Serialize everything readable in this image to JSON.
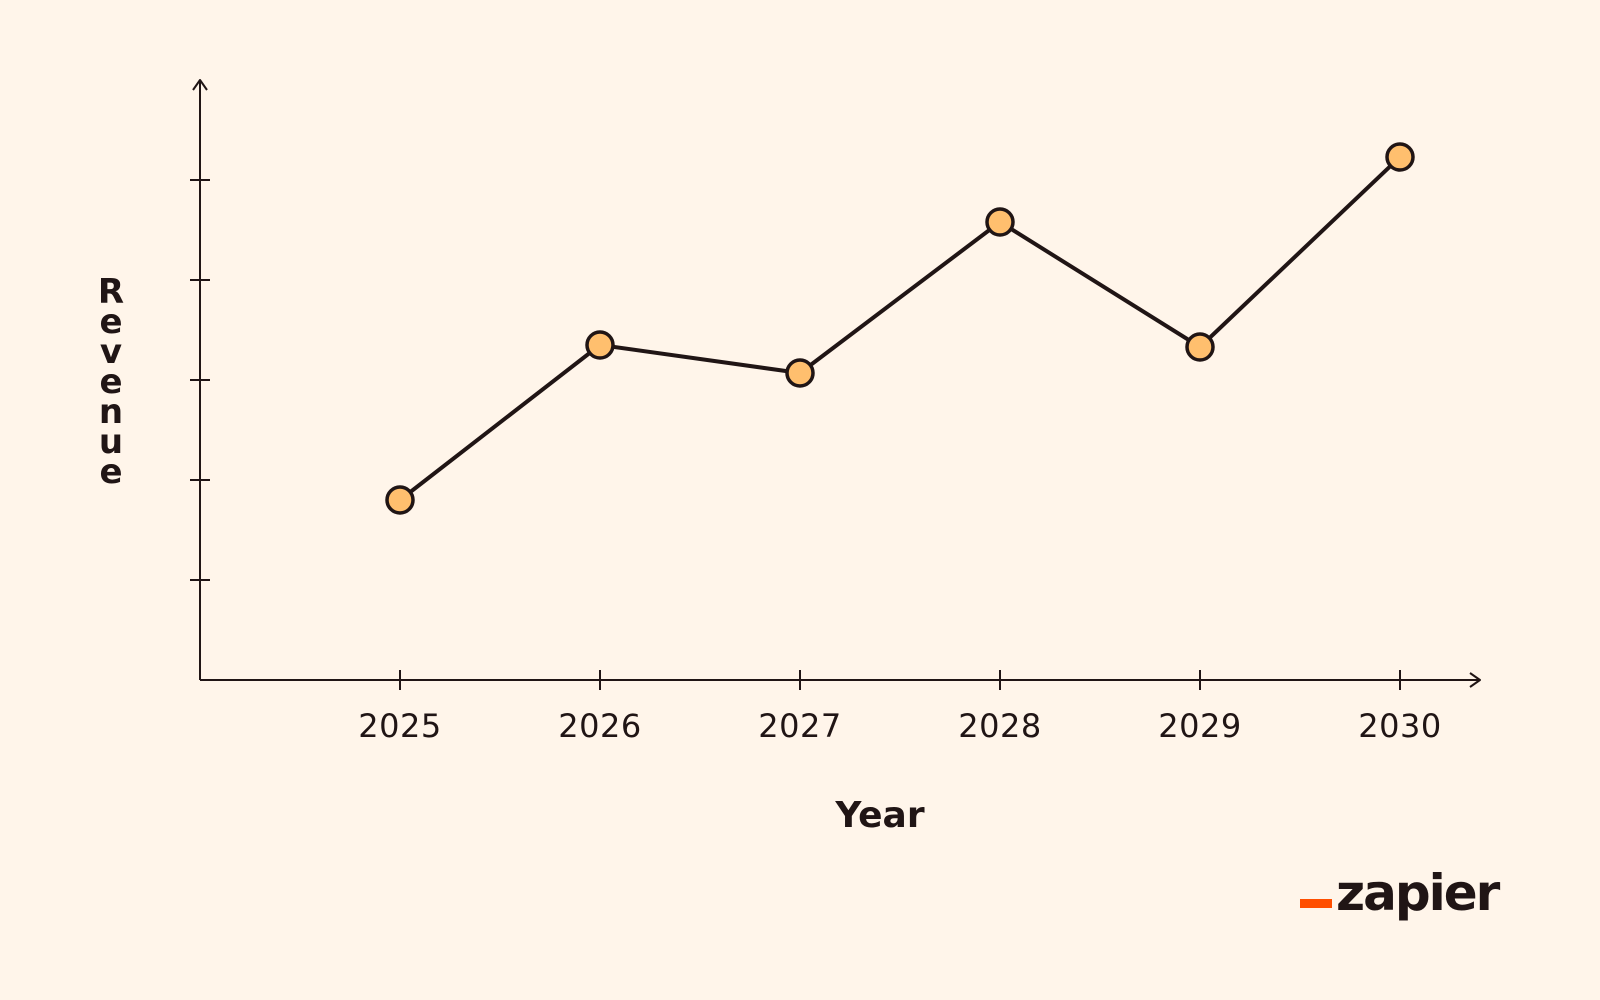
{
  "chart_data": {
    "type": "line",
    "x": [
      "2025",
      "2026",
      "2027",
      "2028",
      "2029",
      "2030"
    ],
    "series": [
      {
        "values": [
          1.8,
          3.35,
          3.07,
          4.58,
          3.33,
          5.23
        ]
      }
    ],
    "xlabel": "Year",
    "ylabel": "Revenue",
    "ylim": [
      0,
      6
    ],
    "yticks": [
      1,
      2,
      3,
      4,
      5
    ],
    "grid": false,
    "legend": "none"
  },
  "colors": {
    "background": "#FFF5EA",
    "line": "#201515",
    "marker_fill": "#FFBF6E",
    "brand_accent": "#FF4F00"
  },
  "brand": {
    "wordmark": "zapier"
  }
}
